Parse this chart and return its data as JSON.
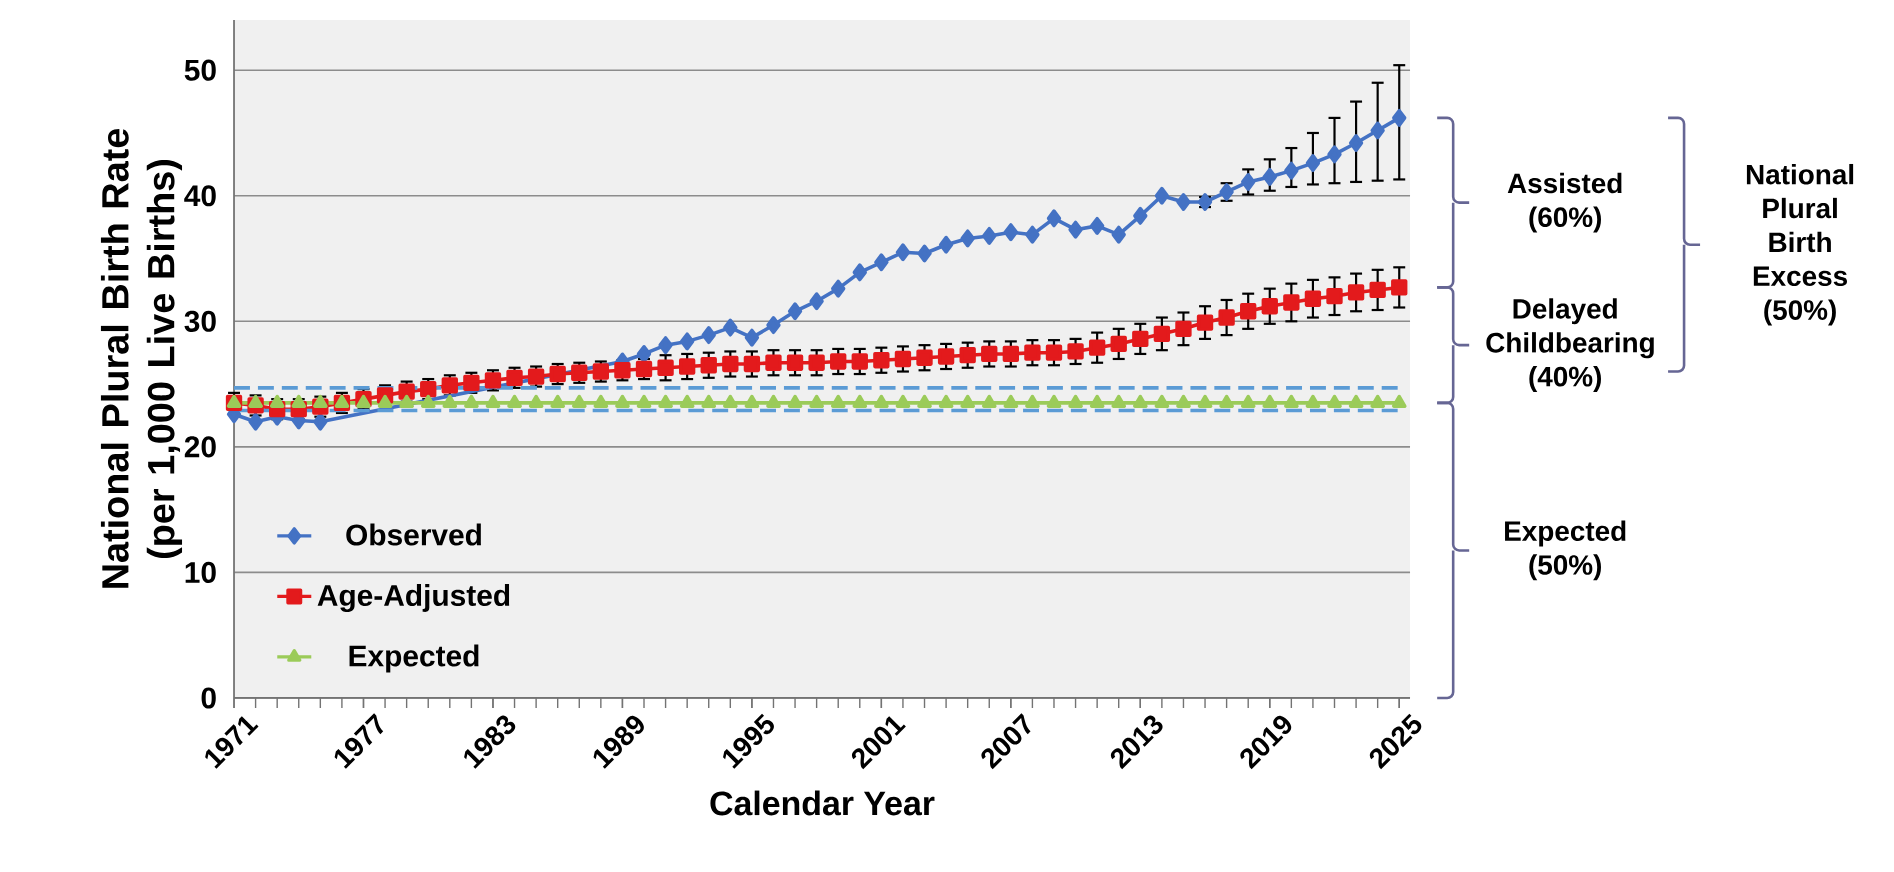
{
  "chart_data": {
    "type": "line",
    "xlabel": "Calendar Year",
    "ylabel": "National Plural Birth Rate (per 1,000  Live Births)",
    "x": [
      1971,
      1972,
      1973,
      1974,
      1975,
      1976,
      1977,
      1978,
      1979,
      1980,
      1981,
      1982,
      1983,
      1984,
      1985,
      1986,
      1987,
      1988,
      1989,
      1990,
      1991,
      1992,
      1993,
      1994,
      1995,
      1996,
      1997,
      1998,
      1999,
      2000,
      2001,
      2002,
      2003,
      2004,
      2005,
      2006,
      2007,
      2008,
      2009,
      2010,
      2011,
      2012,
      2013,
      2014,
      2015,
      2016,
      2017,
      2018,
      2019,
      2020,
      2021,
      2022,
      2023,
      2024,
      2025
    ],
    "xlim": [
      1971,
      2025.5
    ],
    "xticks": [
      1971,
      1977,
      1983,
      1989,
      1995,
      2001,
      2007,
      2013,
      2019,
      2025
    ],
    "ylim": [
      0,
      54
    ],
    "yticks": [
      0,
      10,
      20,
      30,
      40,
      50
    ],
    "grid": "y",
    "legend": "bottom left",
    "series": [
      {
        "name": "Observed",
        "color": "#4472c4",
        "marker": "diamond",
        "values": [
          22.6,
          22.0,
          22.4,
          22.1,
          22.0,
          null,
          null,
          null,
          null,
          null,
          null,
          null,
          null,
          null,
          null,
          null,
          null,
          null,
          26.8,
          27.4,
          28.1,
          28.4,
          28.9,
          29.5,
          28.7,
          29.7,
          30.8,
          31.6,
          32.6,
          33.9,
          34.7,
          35.5,
          35.4,
          36.1,
          36.6,
          36.8,
          37.1,
          36.9,
          38.2,
          37.3,
          37.6,
          36.9,
          38.4,
          40.0,
          39.5,
          39.5,
          40.3,
          41.1,
          41.5,
          42.0,
          42.6,
          43.3,
          44.2,
          45.2,
          46.2
        ],
        "errors": [
          null,
          null,
          null,
          null,
          null,
          null,
          null,
          null,
          null,
          null,
          null,
          null,
          null,
          null,
          null,
          null,
          null,
          null,
          null,
          null,
          null,
          null,
          null,
          null,
          null,
          null,
          null,
          null,
          null,
          null,
          null,
          null,
          null,
          null,
          null,
          null,
          null,
          null,
          null,
          null,
          null,
          null,
          null,
          null,
          null,
          [
            39.1,
            39.9
          ],
          [
            39.6,
            41.0
          ],
          [
            40.1,
            42.1
          ],
          [
            40.4,
            42.9
          ],
          [
            40.7,
            43.8
          ],
          [
            40.9,
            45.0
          ],
          [
            41.0,
            46.2
          ],
          [
            41.1,
            47.5
          ],
          [
            41.2,
            49.0
          ],
          [
            41.3,
            50.4
          ]
        ]
      },
      {
        "name": "Age-Adjusted",
        "color": "#e31a1c",
        "marker": "square",
        "values": [
          23.5,
          23.3,
          23.0,
          23.0,
          23.2,
          23.5,
          23.8,
          24.1,
          24.4,
          24.6,
          24.9,
          25.1,
          25.3,
          25.5,
          25.6,
          25.8,
          25.9,
          26.0,
          26.1,
          26.2,
          26.3,
          26.4,
          26.5,
          26.6,
          26.6,
          26.7,
          26.7,
          26.7,
          26.8,
          26.8,
          26.9,
          27.0,
          27.1,
          27.2,
          27.3,
          27.4,
          27.4,
          27.5,
          27.5,
          27.6,
          27.9,
          28.2,
          28.6,
          29.0,
          29.4,
          29.9,
          30.3,
          30.8,
          31.2,
          31.5,
          31.8,
          32.0,
          32.3,
          32.5,
          32.7
        ],
        "errors": [
          0.8,
          0.8,
          0.8,
          0.8,
          0.8,
          0.8,
          0.8,
          0.8,
          0.8,
          0.8,
          0.8,
          0.8,
          0.8,
          0.8,
          0.8,
          0.8,
          0.8,
          0.8,
          0.8,
          0.8,
          1.0,
          1.0,
          1.0,
          1.0,
          1.0,
          1.0,
          1.0,
          1.0,
          1.0,
          1.0,
          1.0,
          1.0,
          1.0,
          1.0,
          1.0,
          1.0,
          1.0,
          1.0,
          1.0,
          1.0,
          1.2,
          1.2,
          1.2,
          1.3,
          1.3,
          1.3,
          1.4,
          1.4,
          1.4,
          1.5,
          1.5,
          1.5,
          1.5,
          1.6,
          1.6
        ]
      },
      {
        "color": "#5b9bd5",
        "marker": "none",
        "line_style": "dashed",
        "values": [
          24.7,
          24.7,
          24.7,
          24.7,
          24.7,
          24.7,
          24.7,
          24.7,
          24.7,
          24.7,
          24.7,
          24.7,
          24.7,
          24.7,
          24.7,
          24.7,
          24.7,
          24.7,
          24.7,
          24.7,
          24.7,
          24.7,
          24.7,
          24.7,
          24.7,
          24.7,
          24.7,
          24.7,
          24.7,
          24.7,
          24.7,
          24.7,
          24.7,
          24.7,
          24.7,
          24.7,
          24.7,
          24.7,
          24.7,
          24.7,
          24.7,
          24.7,
          24.7,
          24.7,
          24.7,
          24.7,
          24.7,
          24.7,
          24.7,
          24.7,
          24.7,
          24.7,
          24.7,
          24.7,
          24.7
        ]
      },
      {
        "color": "#5b9bd5",
        "marker": "none",
        "line_style": "dashed",
        "values": [
          22.9,
          22.9,
          22.9,
          22.9,
          22.9,
          22.9,
          22.9,
          22.9,
          22.9,
          22.9,
          22.9,
          22.9,
          22.9,
          22.9,
          22.9,
          22.9,
          22.9,
          22.9,
          22.9,
          22.9,
          22.9,
          22.9,
          22.9,
          22.9,
          22.9,
          22.9,
          22.9,
          22.9,
          22.9,
          22.9,
          22.9,
          22.9,
          22.9,
          22.9,
          22.9,
          22.9,
          22.9,
          22.9,
          22.9,
          22.9,
          22.9,
          22.9,
          22.9,
          22.9,
          22.9,
          22.9,
          22.9,
          22.9,
          22.9,
          22.9,
          22.9,
          22.9,
          22.9,
          22.9,
          22.9
        ]
      },
      {
        "name": "Expected",
        "color": "#9bcb59",
        "marker": "triangle",
        "values": [
          23.5,
          23.5,
          23.5,
          23.5,
          23.5,
          23.5,
          23.5,
          23.5,
          23.5,
          23.5,
          23.5,
          23.5,
          23.5,
          23.5,
          23.5,
          23.5,
          23.5,
          23.5,
          23.5,
          23.5,
          23.5,
          23.5,
          23.5,
          23.5,
          23.5,
          23.5,
          23.5,
          23.5,
          23.5,
          23.5,
          23.5,
          23.5,
          23.5,
          23.5,
          23.5,
          23.5,
          23.5,
          23.5,
          23.5,
          23.5,
          23.5,
          23.5,
          23.5,
          23.5,
          23.5,
          23.5,
          23.5,
          23.5,
          23.5,
          23.5,
          23.5,
          23.5,
          23.5,
          23.5,
          23.5
        ]
      }
    ],
    "annotations": [
      "Assisted (60%)",
      "Delayed Childbearing (40%)",
      "Expected (50%)",
      "National Plural Birth Excess (50%)"
    ]
  }
}
